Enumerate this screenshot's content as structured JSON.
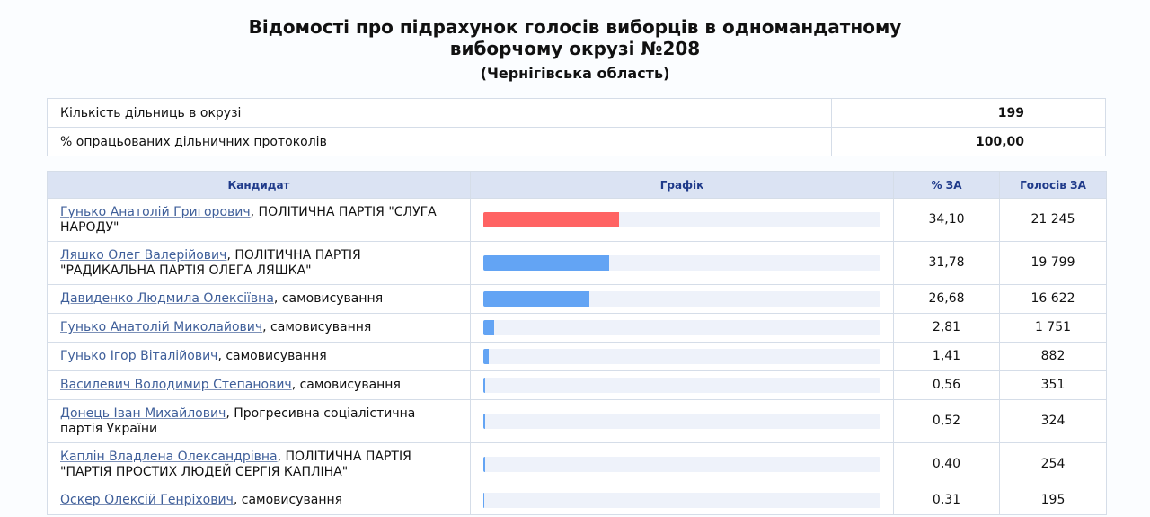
{
  "header": {
    "title_line1": "Відомості про підрахунок голосів виборців в одномандатному",
    "title_line2": "виборчому окрузі №208",
    "subtitle": "(Чернігівська область)"
  },
  "summary": [
    {
      "label": "Кількість дільниць в окрузі",
      "value": "199"
    },
    {
      "label": "% опрацьованих дільничних протоколів",
      "value": "100,00"
    }
  ],
  "columns": {
    "candidate": "Кандидат",
    "chart": "Графік",
    "percent": "% ЗА",
    "votes": "Голосів ЗА"
  },
  "colors": {
    "leader": "#ff6363",
    "others": "#63a4f4"
  },
  "rows": [
    {
      "name": "Гунько Анатолій Григорович",
      "party": ", ПОЛІТИЧНА ПАРТІЯ \"СЛУГА НАРОДУ\"",
      "percent": "34,10",
      "votes": "21 245",
      "share": 34.1,
      "leader": true
    },
    {
      "name": "Ляшко Олег Валерійович",
      "party": ", ПОЛІТИЧНА ПАРТІЯ \"РАДИКАЛЬНА ПАРТІЯ ОЛЕГА ЛЯШКА\"",
      "percent": "31,78",
      "votes": "19 799",
      "share": 31.78,
      "leader": false
    },
    {
      "name": "Давиденко Людмила Олексіївна",
      "party": ", самовисування",
      "percent": "26,68",
      "votes": "16 622",
      "share": 26.68,
      "leader": false
    },
    {
      "name": "Гунько Анатолій Миколайович",
      "party": ", самовисування",
      "percent": "2,81",
      "votes": "1 751",
      "share": 2.81,
      "leader": false
    },
    {
      "name": "Гунько Ігор Віталійович",
      "party": ", самовисування",
      "percent": "1,41",
      "votes": "882",
      "share": 1.41,
      "leader": false
    },
    {
      "name": "Василевич Володимир Степанович",
      "party": ", самовисування",
      "percent": "0,56",
      "votes": "351",
      "share": 0.56,
      "leader": false
    },
    {
      "name": "Донець Іван Михайлович",
      "party": ", Прогресивна соціалістична партія України",
      "percent": "0,52",
      "votes": "324",
      "share": 0.52,
      "leader": false
    },
    {
      "name": "Каплін Владлена Олександрівна",
      "party": ", ПОЛІТИЧНА ПАРТІЯ \"ПАРТІЯ ПРОСТИХ ЛЮДЕЙ СЕРГІЯ КАПЛІНА\"",
      "percent": "0,40",
      "votes": "254",
      "share": 0.4,
      "leader": false
    },
    {
      "name": "Оскер Олексій Генріхович",
      "party": ", самовисування",
      "percent": "0,31",
      "votes": "195",
      "share": 0.31,
      "leader": false
    }
  ]
}
